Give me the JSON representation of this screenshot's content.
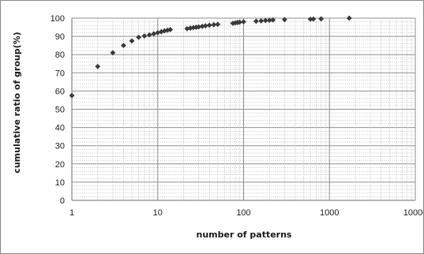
{
  "chart_data": {
    "type": "scatter",
    "title": "",
    "xlabel": "number of patterns",
    "ylabel": "cumulative ratio of group(%)",
    "x_scale": "log",
    "xlim": [
      1,
      10000
    ],
    "ylim": [
      0,
      100
    ],
    "grid": true,
    "legend": "none",
    "x_ticks": [
      "1",
      "10",
      "100",
      "1000",
      "10000"
    ],
    "y_ticks": [
      "0",
      "10",
      "20",
      "30",
      "40",
      "50",
      "60",
      "70",
      "80",
      "90",
      "100"
    ],
    "marker_color": "#3a3a3a",
    "series": [
      {
        "x": [
          1,
          2,
          3,
          4,
          5,
          6,
          7,
          8,
          9,
          10,
          11,
          12,
          13,
          14,
          22,
          24,
          26,
          28,
          30,
          33,
          36,
          40,
          45,
          50,
          75,
          80,
          85,
          90,
          100,
          140,
          160,
          180,
          200,
          220,
          300,
          600,
          650,
          800,
          1700
        ],
        "y": [
          57.5,
          73.5,
          81,
          85,
          87.5,
          89.5,
          90.2,
          90.8,
          91.4,
          92,
          92.5,
          93,
          93.4,
          93.7,
          94.2,
          94.5,
          94.8,
          95,
          95.2,
          95.5,
          95.8,
          96.1,
          96.4,
          96.6,
          97.2,
          97.4,
          97.6,
          97.8,
          98,
          98.3,
          98.5,
          98.7,
          98.8,
          99,
          99.2,
          99.4,
          99.5,
          99.6,
          100
        ]
      }
    ]
  }
}
